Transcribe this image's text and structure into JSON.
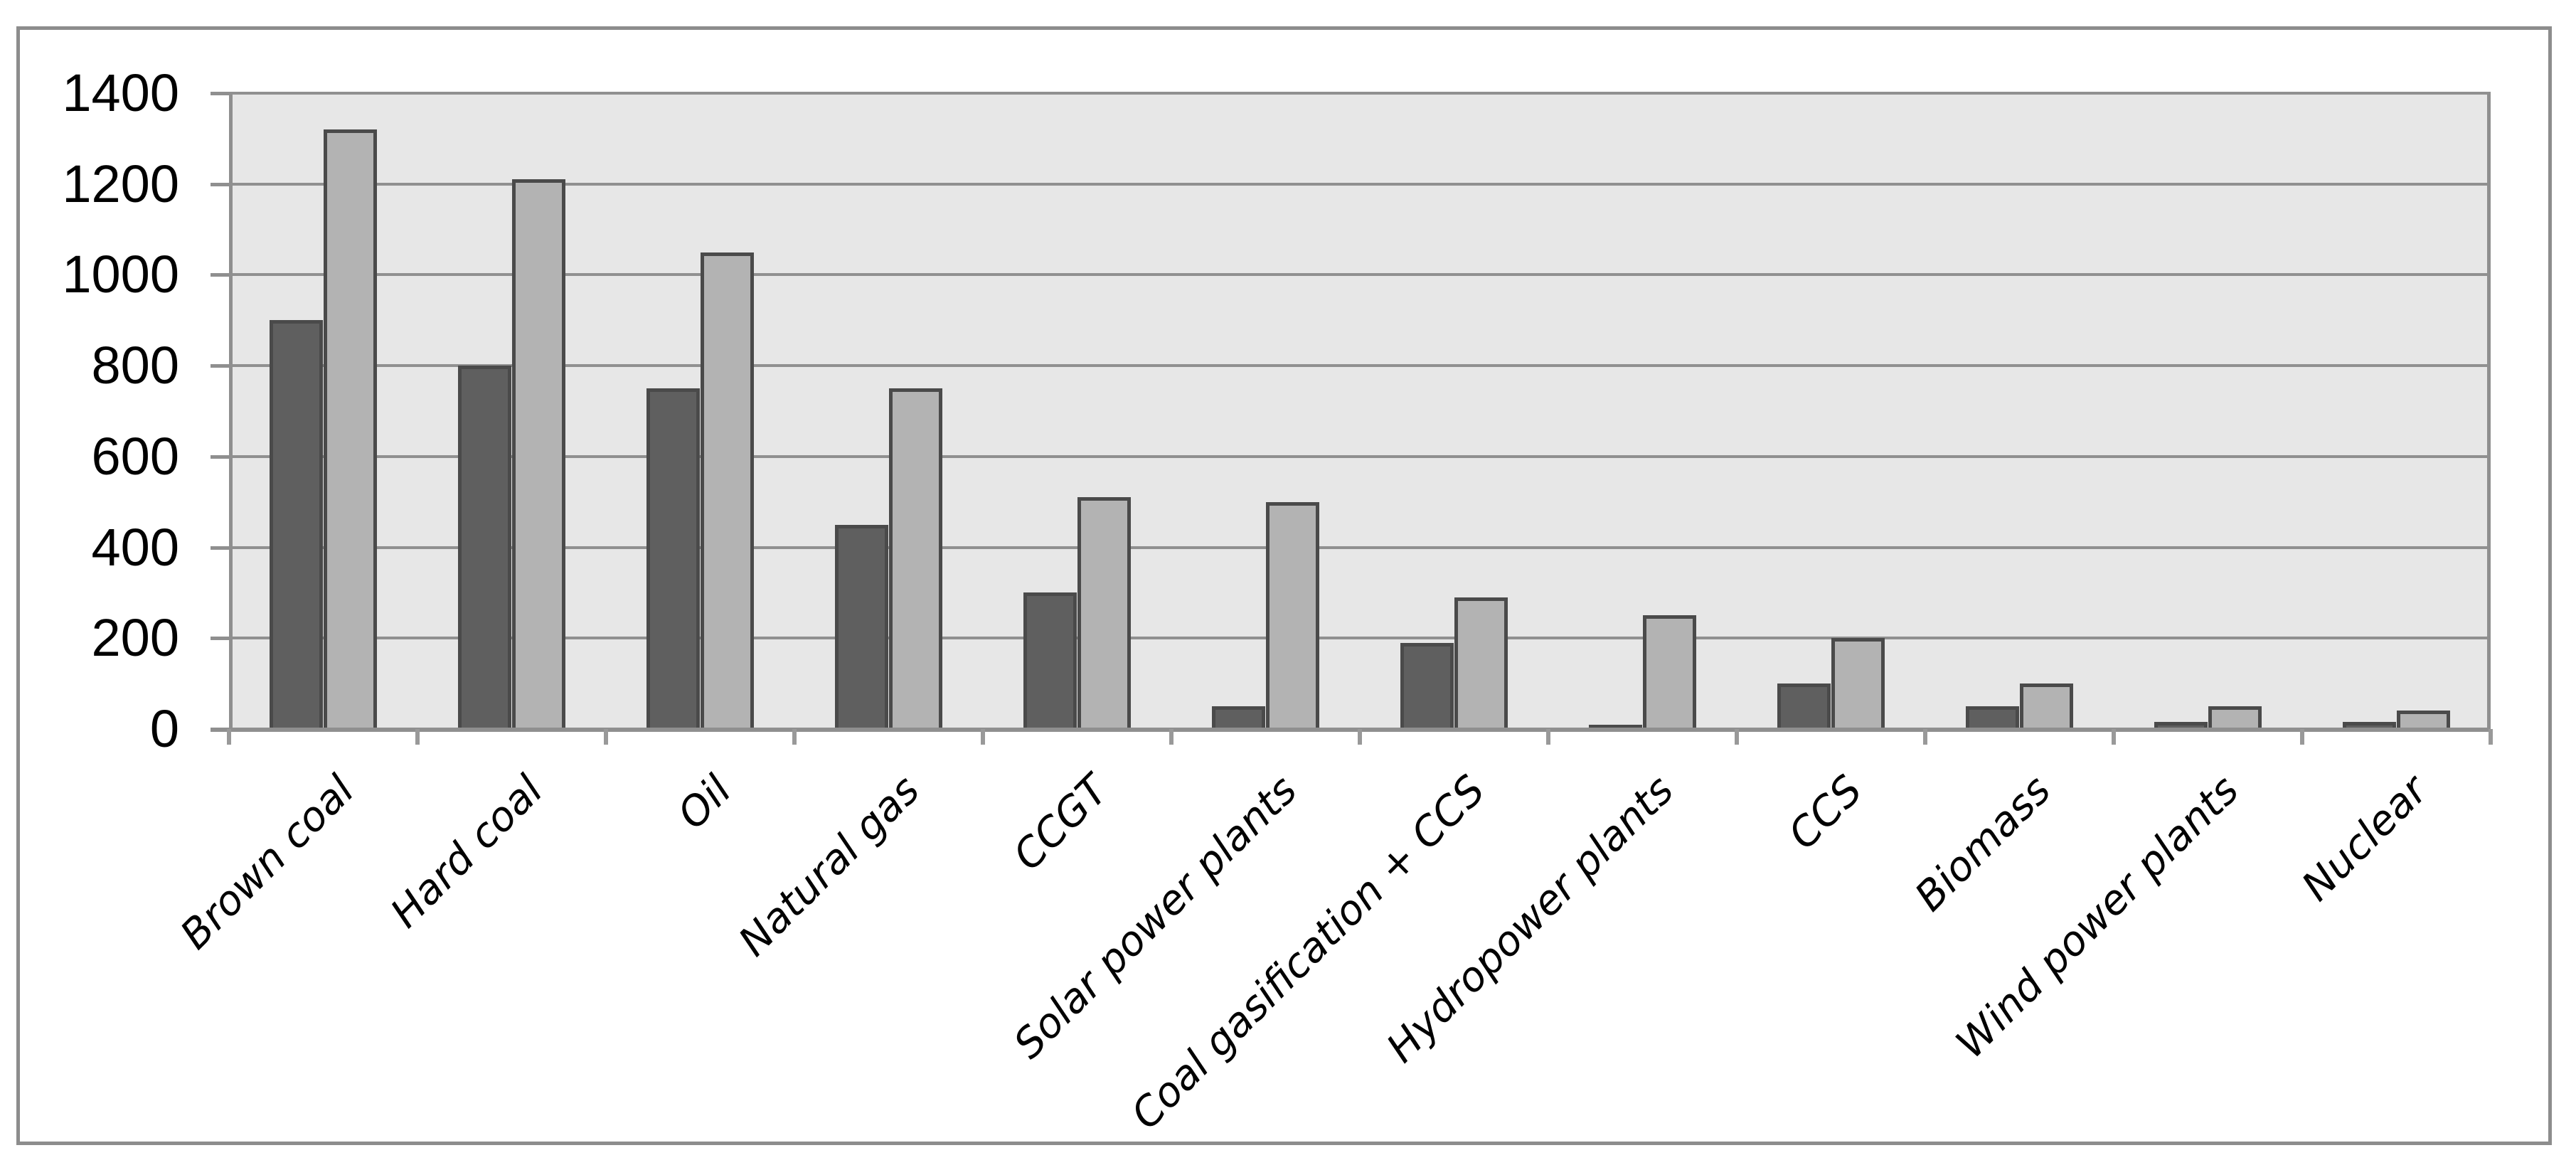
{
  "figure": {
    "background_color": "#ffffff",
    "border_color": "#8d8d8d",
    "plot_background_color": "#e7e7e7",
    "gridline_color": "#909090",
    "axis_color": "#8f8f8f",
    "text_color": "#000000"
  },
  "chart_data": {
    "type": "bar",
    "title": "",
    "xlabel": "",
    "ylabel": "",
    "categories": [
      "Brown coal",
      "Hard coal",
      "Oil",
      "Natural gas",
      "CCGT",
      "Solar power plants",
      "Coal gasification + CCS",
      "Hydropower plants",
      "CCS",
      "Biomass",
      "Wind power plants",
      "Nuclear"
    ],
    "series": [
      {
        "name": "dark-gray-series",
        "color": "#5f5f5f",
        "border_color": "#4a4a4a",
        "values": [
          900,
          800,
          750,
          450,
          300,
          50,
          190,
          10,
          100,
          50,
          15,
          15
        ]
      },
      {
        "name": "light-gray-series",
        "color": "#b3b3b3",
        "border_color": "#4a4a4a",
        "values": [
          1320,
          1210,
          1050,
          750,
          510,
          500,
          290,
          250,
          200,
          100,
          50,
          40
        ]
      }
    ],
    "ylim": [
      0,
      1400
    ],
    "y_ticks": [
      0,
      200,
      400,
      600,
      800,
      1000,
      1200,
      1400
    ],
    "y_tick_labels": [
      "0",
      "200",
      "400",
      "600",
      "800",
      "1000",
      "1200",
      "1400"
    ],
    "grid": "horizontal",
    "legend": "none"
  }
}
